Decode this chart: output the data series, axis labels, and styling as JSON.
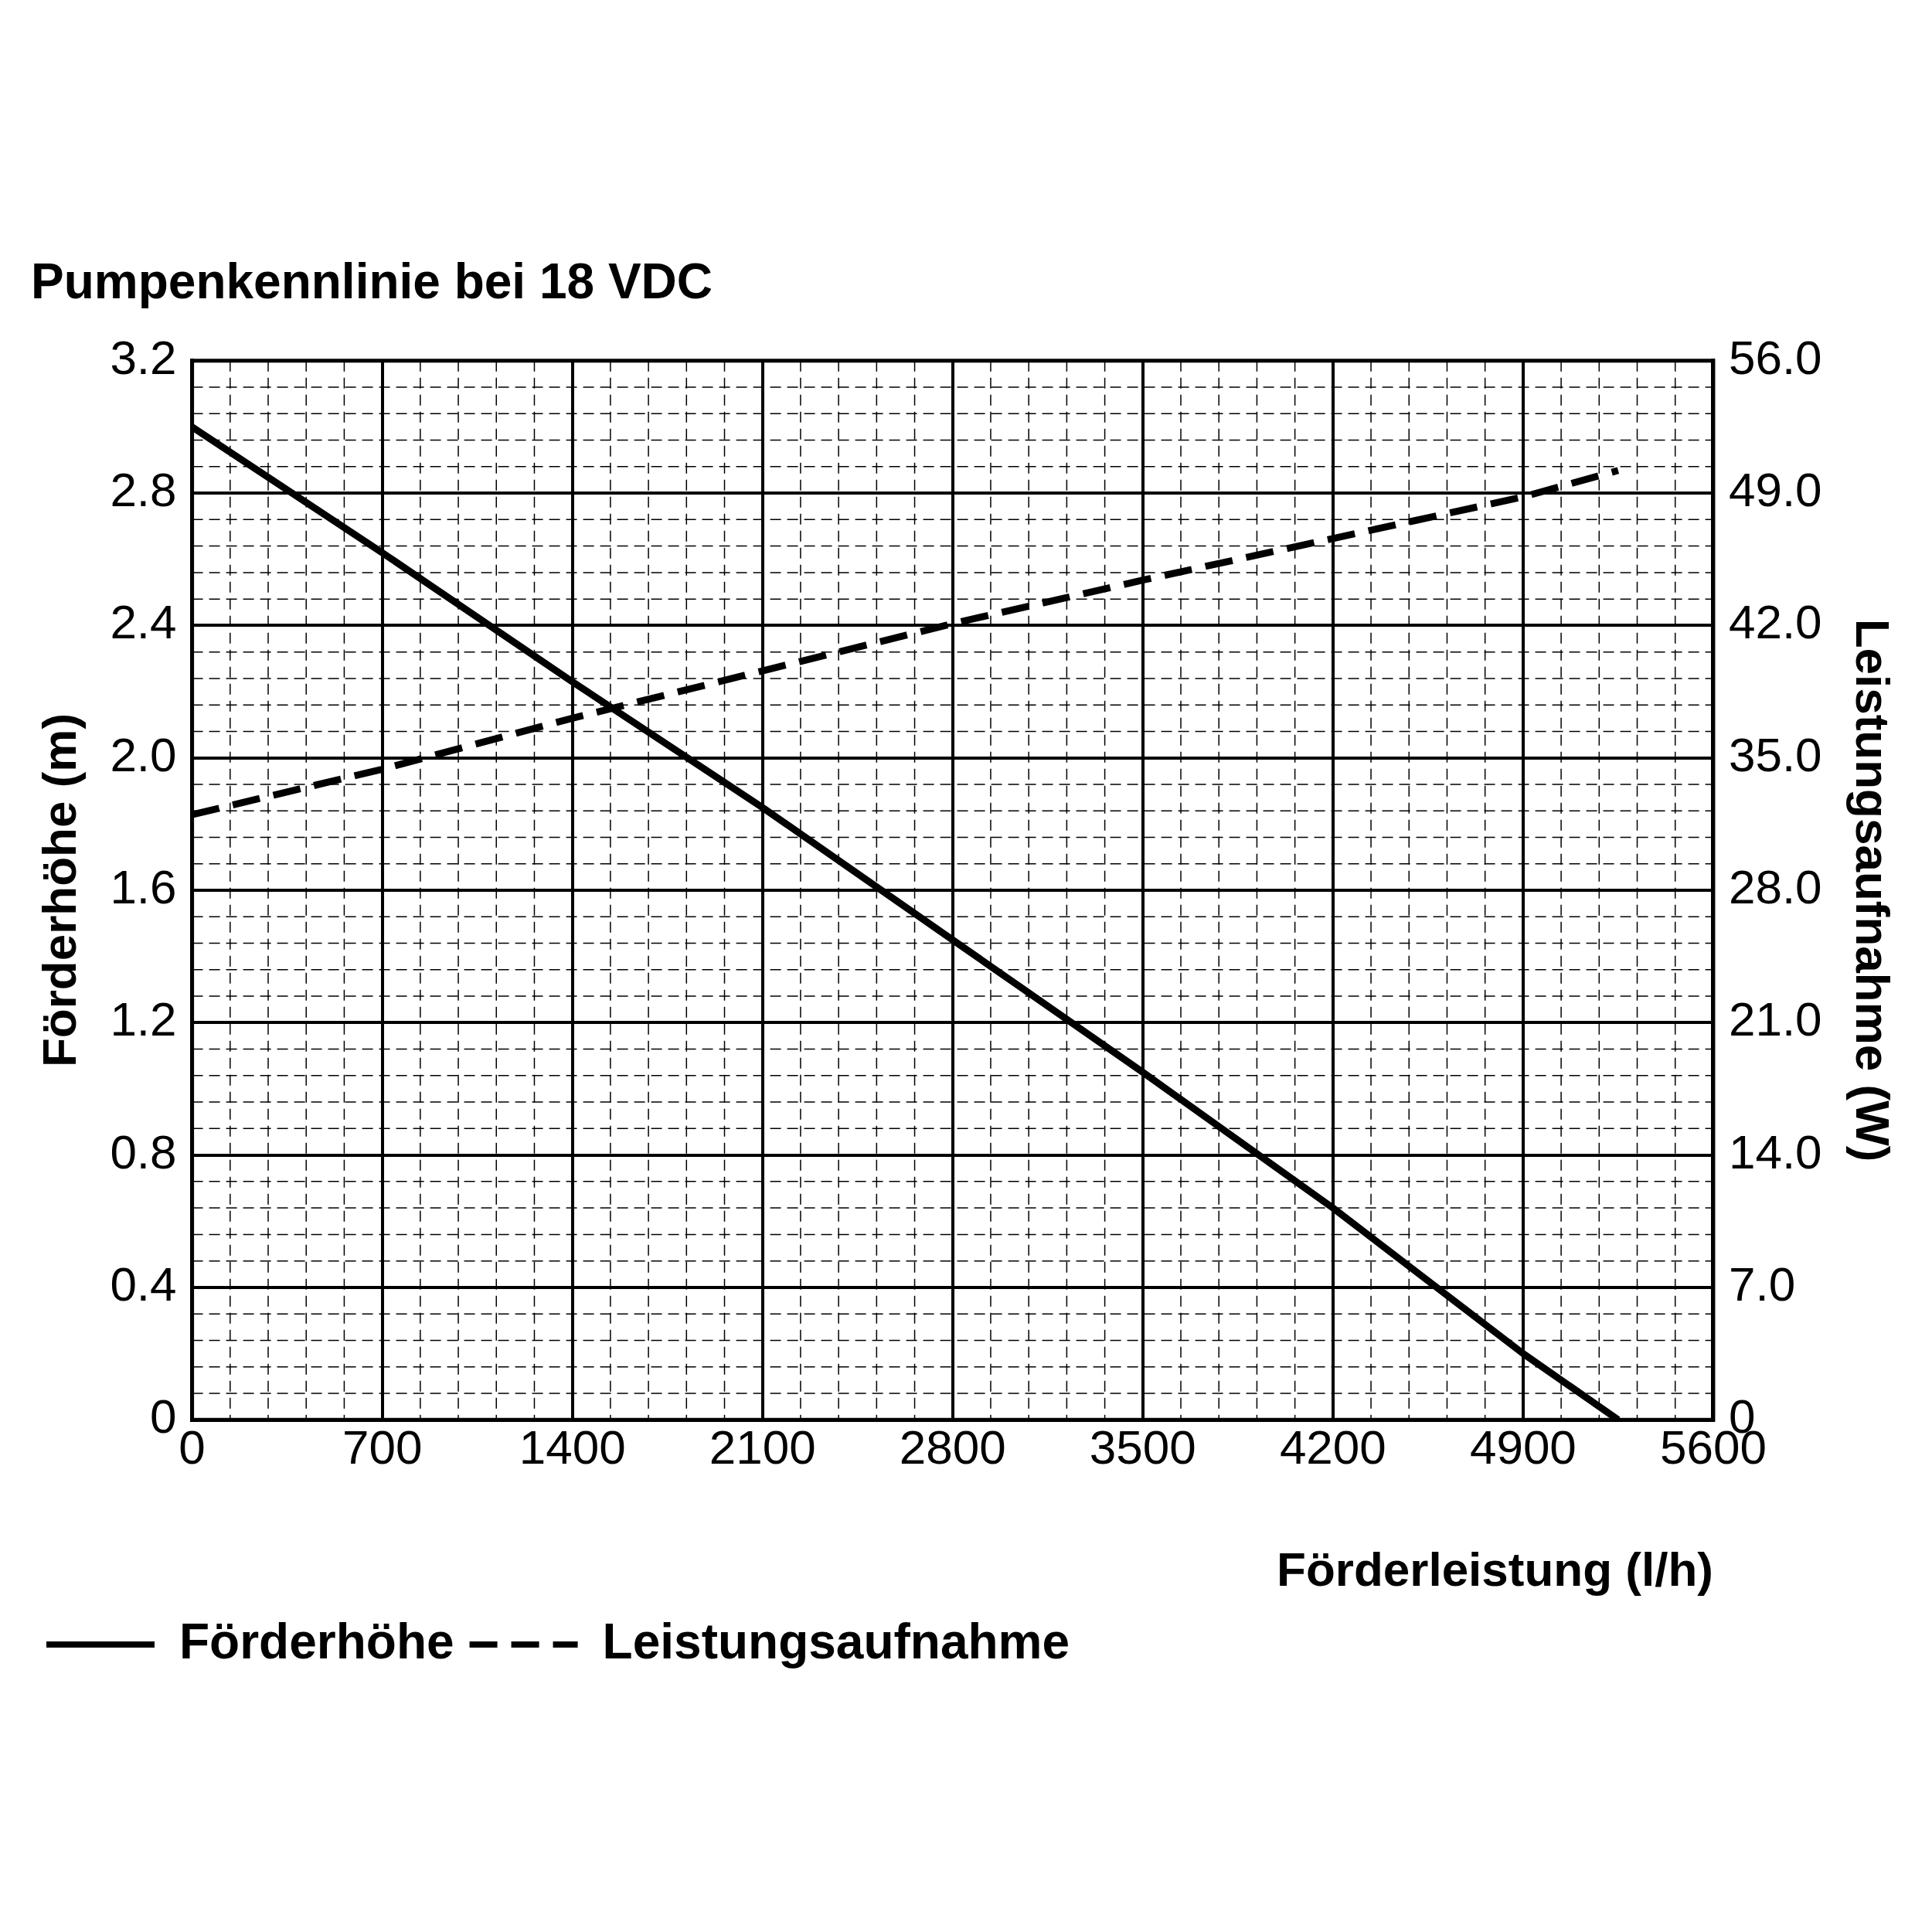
{
  "chart_data": {
    "type": "line",
    "title": "Pumpenkennlinie bei 18 VDC",
    "xlabel": "Förderleistung (l/h)",
    "ylabel": "Förderhöhe (m)",
    "y2label": "Leistungsaufnahme (W)",
    "xlim": [
      0,
      5600
    ],
    "xticks": [
      0,
      700,
      1400,
      2100,
      2800,
      3500,
      4200,
      4900,
      5600
    ],
    "ylim": [
      0,
      3.2
    ],
    "yticks": [
      0,
      0.4,
      0.8,
      1.2,
      1.6,
      {
        "value": 2,
        "label": "2.0"
      },
      2.4,
      2.8,
      3.2
    ],
    "y2lim": [
      0,
      56
    ],
    "y2ticks": [
      {
        "value": 0,
        "label": "0"
      },
      {
        "value": 7,
        "label": "7.0"
      },
      {
        "value": 14,
        "label": "14.0"
      },
      {
        "value": 21,
        "label": "21.0"
      },
      {
        "value": 28,
        "label": "28.0"
      },
      {
        "value": 35,
        "label": "35.0"
      },
      {
        "value": 42,
        "label": "42.0"
      },
      {
        "value": 49,
        "label": "49.0"
      },
      {
        "value": 56,
        "label": "56.0"
      }
    ],
    "grid": true,
    "legend": "bottom left",
    "marker": "none",
    "series": [
      {
        "name": "Förderhöhe",
        "color": "#000000",
        "line_style": "solid",
        "x": [
          0,
          700,
          1400,
          2100,
          2800,
          3500,
          4200,
          4900,
          5250
        ],
        "values": [
          3.0,
          2.62,
          2.23,
          1.85,
          1.45,
          1.05,
          0.64,
          0.2,
          0
        ]
      },
      {
        "name": "Leistungsaufnahme",
        "color": "#000000",
        "line_style": "dashed",
        "axis": "y2",
        "x": [
          0,
          700,
          1400,
          2100,
          2800,
          3500,
          4200,
          4900,
          5250
        ],
        "values": [
          32,
          34.4,
          37.1,
          39.6,
          42.1,
          44.4,
          46.6,
          48.8,
          50.2
        ]
      }
    ]
  }
}
